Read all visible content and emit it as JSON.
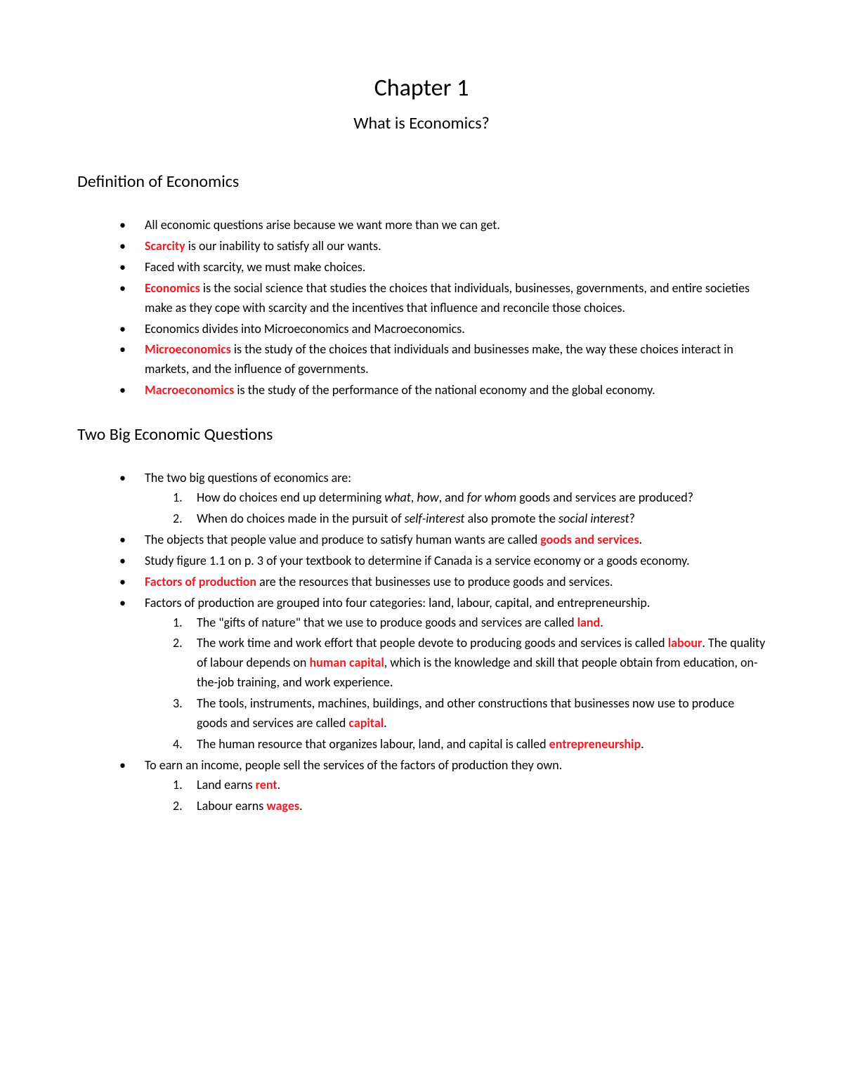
{
  "colors": {
    "text": "#000000",
    "keyword": "#ee1c25",
    "background": "#ffffff"
  },
  "typography": {
    "body_fontsize_pt": 11,
    "chapter_fontsize_pt": 20,
    "subtitle_fontsize_pt": 14,
    "heading_fontsize_pt": 14,
    "font_family": "Calibri"
  },
  "chapter": {
    "number_label": "Chapter 1",
    "title": "What is Economics?"
  },
  "sections": [
    {
      "heading": "Definition of Economics",
      "items": [
        {
          "runs": [
            {
              "t": "All economic questions arise because we want more than we can get."
            }
          ]
        },
        {
          "runs": [
            {
              "t": "Scarcity",
              "cls": "key"
            },
            {
              "t": " is our inability to satisfy all our wants."
            }
          ]
        },
        {
          "runs": [
            {
              "t": "Faced with scarcity, we must make choices."
            }
          ]
        },
        {
          "runs": [
            {
              "t": "Economics",
              "cls": "key"
            },
            {
              "t": " is the social science that studies the choices that individuals, businesses, governments, and entire societies make as they cope with scarcity and the incentives that influence and reconcile those choices."
            }
          ]
        },
        {
          "runs": [
            {
              "t": "Economics divides into Microeconomics and Macroeconomics."
            }
          ]
        },
        {
          "runs": [
            {
              "t": "Microeconomics",
              "cls": "key"
            },
            {
              "t": " is the study of the choices that individuals and businesses make, the way these choices interact in markets, and the influence of governments."
            }
          ]
        },
        {
          "runs": [
            {
              "t": "Macroeconomics",
              "cls": "key"
            },
            {
              "t": " is the study of the performance of the national economy and the global economy."
            }
          ]
        }
      ]
    },
    {
      "heading": "Two Big Economic Questions",
      "items": [
        {
          "runs": [
            {
              "t": "The two big questions of economics are:"
            }
          ],
          "sub": [
            {
              "runs": [
                {
                  "t": "How do choices end up determining "
                },
                {
                  "t": "what",
                  "cls": "ital"
                },
                {
                  "t": ", "
                },
                {
                  "t": "how",
                  "cls": "ital"
                },
                {
                  "t": ", and "
                },
                {
                  "t": "for whom",
                  "cls": "ital"
                },
                {
                  "t": " goods and services are produced?"
                }
              ]
            },
            {
              "runs": [
                {
                  "t": "When do choices made in the pursuit of "
                },
                {
                  "t": "self-interest",
                  "cls": "ital"
                },
                {
                  "t": " also promote the "
                },
                {
                  "t": "social interest",
                  "cls": "ital"
                },
                {
                  "t": "?"
                }
              ]
            }
          ]
        },
        {
          "runs": [
            {
              "t": "The objects that people value and produce to satisfy human wants are called "
            },
            {
              "t": "goods and services",
              "cls": "key"
            },
            {
              "t": "."
            }
          ]
        },
        {
          "runs": [
            {
              "t": "Study figure 1.1 on p. 3 of your textbook to determine if Canada is a service economy or a goods economy."
            }
          ]
        },
        {
          "runs": [
            {
              "t": "Factors of production",
              "cls": "key"
            },
            {
              "t": " are the resources that businesses use to produce goods and services."
            }
          ]
        },
        {
          "runs": [
            {
              "t": "Factors of production are grouped into four categories: land, labour, capital, and entrepreneurship."
            }
          ],
          "sub": [
            {
              "runs": [
                {
                  "t": "The \"gifts of nature\" that we use to produce goods and services are called "
                },
                {
                  "t": "land",
                  "cls": "key"
                },
                {
                  "t": "."
                }
              ]
            },
            {
              "runs": [
                {
                  "t": "The work time and work effort that people devote to producing goods and services is called "
                },
                {
                  "t": "labour",
                  "cls": "key"
                },
                {
                  "t": ". The quality of labour depends on "
                },
                {
                  "t": "human capital",
                  "cls": "key"
                },
                {
                  "t": ", which is the knowledge and skill that people obtain from education, on-the-job training, and work experience."
                }
              ]
            },
            {
              "runs": [
                {
                  "t": "The tools, instruments, machines, buildings, and other constructions that businesses now use to produce goods and services are called "
                },
                {
                  "t": "capital",
                  "cls": "key"
                },
                {
                  "t": "."
                }
              ]
            },
            {
              "runs": [
                {
                  "t": "The human resource that organizes labour, land, and capital is called "
                },
                {
                  "t": "entrepreneurship",
                  "cls": "key"
                },
                {
                  "t": "."
                }
              ]
            }
          ]
        },
        {
          "runs": [
            {
              "t": "To earn an income, people sell the services of the factors of production they own."
            }
          ],
          "sub": [
            {
              "runs": [
                {
                  "t": "Land earns "
                },
                {
                  "t": "rent",
                  "cls": "key"
                },
                {
                  "t": "."
                }
              ]
            },
            {
              "runs": [
                {
                  "t": "Labour earns "
                },
                {
                  "t": "wages",
                  "cls": "key"
                },
                {
                  "t": "."
                }
              ]
            }
          ]
        }
      ]
    }
  ]
}
